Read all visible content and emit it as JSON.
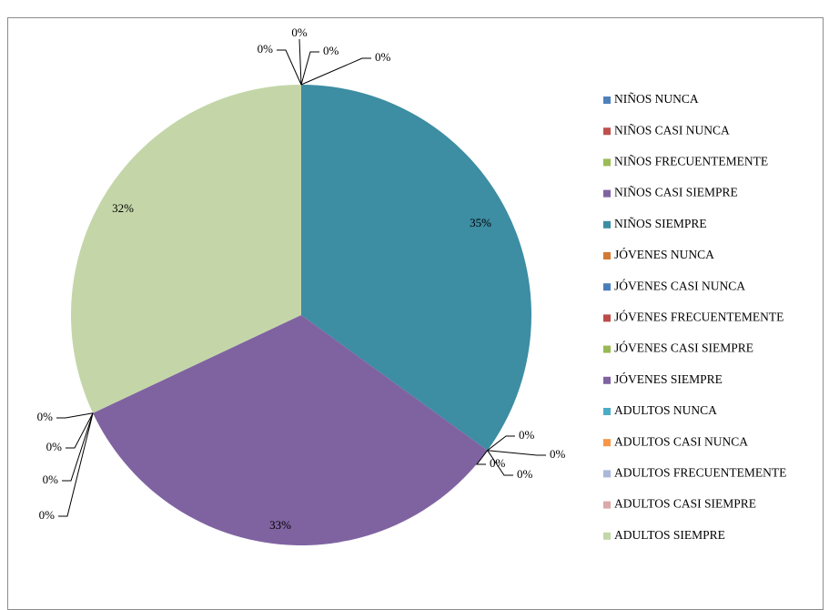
{
  "chart_data": {
    "type": "pie",
    "title": "",
    "legend_position": "right",
    "start_angle": "top, clockwise",
    "series": [
      {
        "name": "NIÑOS NUNCA",
        "value": 0,
        "label": "0%",
        "color": "#4F81BD"
      },
      {
        "name": "NIÑOS CASI NUNCA",
        "value": 0,
        "label": "0%",
        "color": "#C0504D"
      },
      {
        "name": "NIÑOS FRECUENTEMENTE",
        "value": 0,
        "label": "0%",
        "color": "#9BBB59"
      },
      {
        "name": "NIÑOS CASI SIEMPRE",
        "value": 0,
        "label": "0%",
        "color": "#8064A2"
      },
      {
        "name": "NIÑOS SIEMPRE",
        "value": 35,
        "label": "35%",
        "color": "#3D8DA3"
      },
      {
        "name": "JÓVENES NUNCA",
        "value": 0,
        "label": "0%",
        "color": "#D27A33"
      },
      {
        "name": "JÓVENES CASI NUNCA",
        "value": 0,
        "label": "0%",
        "color": "#4A7EBB"
      },
      {
        "name": "JÓVENES FRECUENTEMENTE",
        "value": 0,
        "label": "0%",
        "color": "#BE4B48"
      },
      {
        "name": "JÓVENES CASI SIEMPRE",
        "value": 0,
        "label": "0%",
        "color": "#98B954"
      },
      {
        "name": "JÓVENES SIEMPRE",
        "value": 33,
        "label": "33%",
        "color": "#7F63A1"
      },
      {
        "name": "ADULTOS NUNCA",
        "value": 0,
        "label": "0%",
        "color": "#4BACC6"
      },
      {
        "name": "ADULTOS CASI NUNCA",
        "value": 0,
        "label": "0%",
        "color": "#F79646"
      },
      {
        "name": "ADULTOS FRECUENTEMENTE",
        "value": 0,
        "label": "0%",
        "color": "#A9B8D9"
      },
      {
        "name": "ADULTOS CASI SIEMPRE",
        "value": 0,
        "label": "0%",
        "color": "#DBA9A8"
      },
      {
        "name": "ADULTOS SIEMPRE",
        "value": 32,
        "label": "32%",
        "color": "#C4D6A8"
      }
    ]
  }
}
